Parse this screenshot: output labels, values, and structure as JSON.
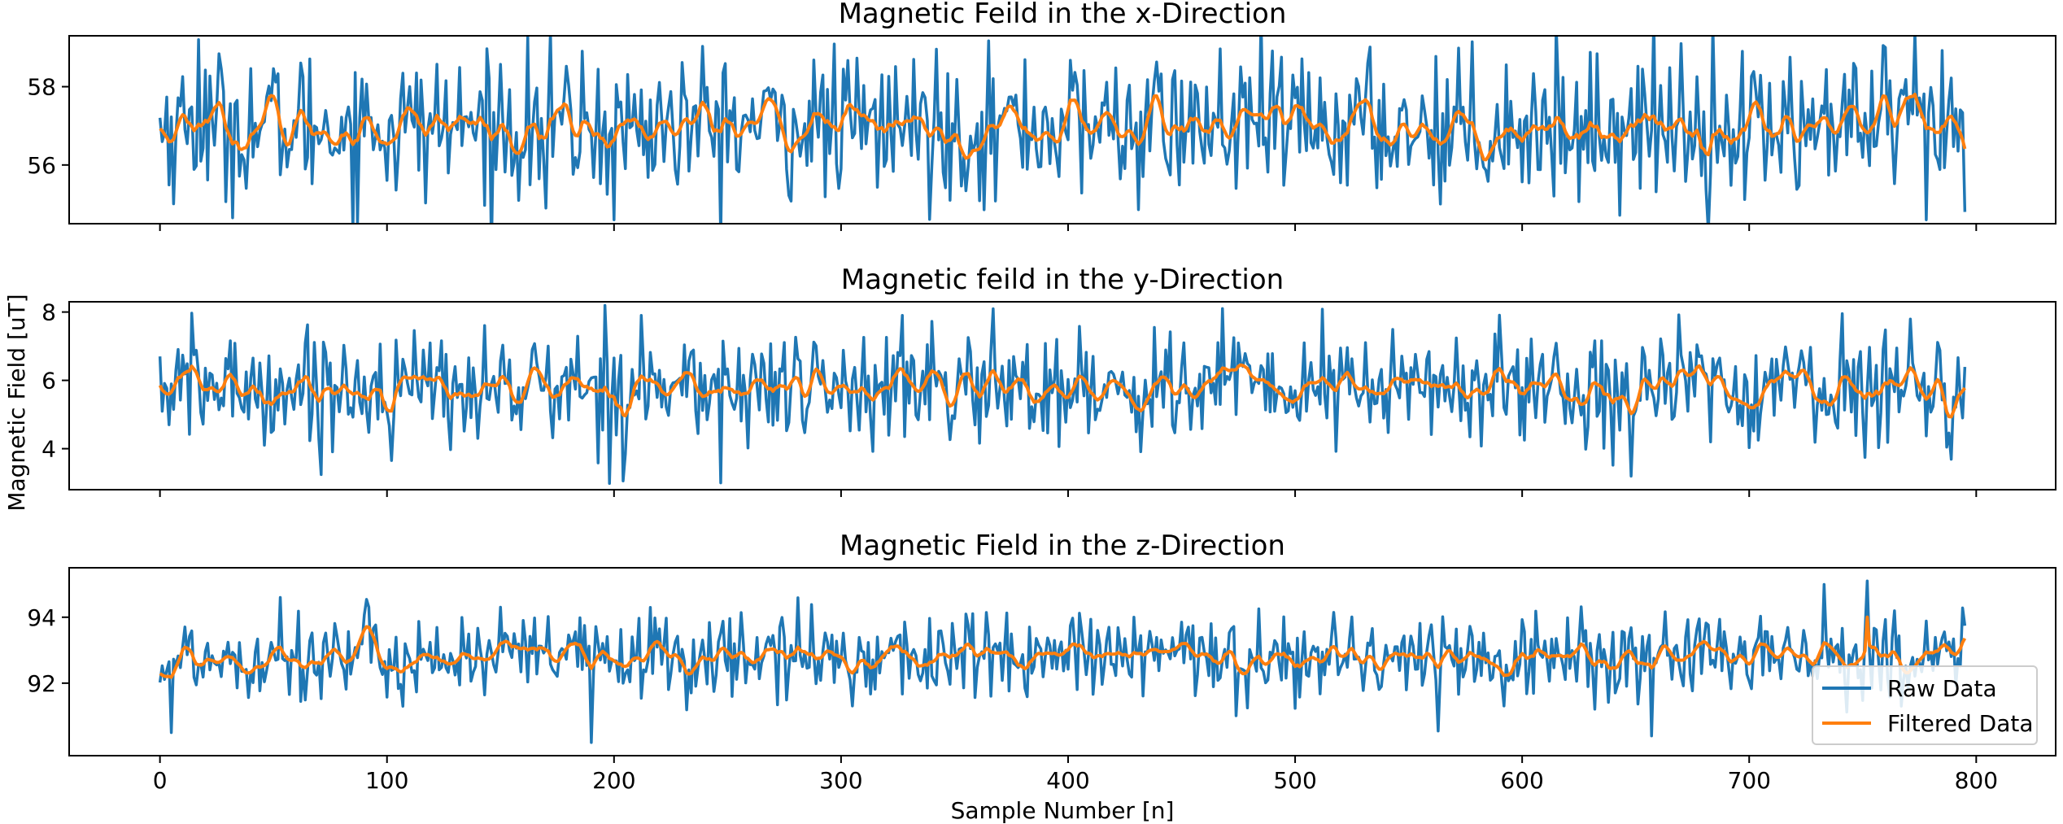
{
  "figure": {
    "ylabel": "Magnetic Field [uT]",
    "xlabel": "Sample Number [n]",
    "legend": {
      "placement": "lower-right",
      "entries": [
        {
          "label": "Raw Data",
          "color": "#1f77b4"
        },
        {
          "label": "Filtered Data",
          "color": "#ff7f0e"
        }
      ]
    }
  },
  "chart_data": [
    {
      "type": "line",
      "title": "Magnetic Feild in the x-Direction",
      "xlim": [
        -40,
        835
      ],
      "ylim": [
        54.5,
        59.3
      ],
      "yticks": [
        56,
        58
      ],
      "xticks": [
        0,
        100,
        200,
        300,
        400,
        500,
        600,
        700,
        800
      ],
      "x_range": [
        0,
        795
      ],
      "series": [
        {
          "name": "Raw Data",
          "color": "#1f77b4",
          "base": 57.0,
          "spread": 1.1,
          "extremes": [
            [
              17,
              59.2
            ],
            [
              200,
              54.6
            ],
            [
              670,
              59.1
            ],
            [
              778,
              54.6
            ],
            [
              795,
              54.8
            ],
            [
              170,
              54.9
            ]
          ]
        },
        {
          "name": "Filtered Data",
          "color": "#ff7f0e",
          "base": 57.0,
          "spread": 0.45,
          "extremes": []
        }
      ]
    },
    {
      "type": "line",
      "title": "Magnetic feild in the y-Direction",
      "xlim": [
        -40,
        835
      ],
      "ylim": [
        2.8,
        8.3
      ],
      "yticks": [
        4,
        6,
        8
      ],
      "xticks": [
        0,
        100,
        200,
        300,
        400,
        500,
        600,
        700,
        800
      ],
      "x_range": [
        0,
        795
      ],
      "series": [
        {
          "name": "Raw Data",
          "color": "#1f77b4",
          "base": 5.8,
          "spread": 1.0,
          "extremes": [
            [
              247,
              3.0
            ],
            [
              468,
              8.1
            ],
            [
              212,
              7.9
            ],
            [
              0,
              6.7
            ]
          ]
        },
        {
          "name": "Filtered Data",
          "color": "#ff7f0e",
          "base": 5.8,
          "spread": 0.5,
          "extremes": []
        }
      ]
    },
    {
      "type": "line",
      "title": "Magnetic Field in the z-Direction",
      "xlim": [
        -40,
        835
      ],
      "ylim": [
        89.8,
        95.5
      ],
      "yticks": [
        92,
        94
      ],
      "xticks": [
        0,
        100,
        200,
        300,
        400,
        500,
        600,
        700,
        800
      ],
      "x_range": [
        0,
        795
      ],
      "series": [
        {
          "name": "Raw Data",
          "color": "#1f77b4",
          "base": 92.8,
          "spread": 0.8,
          "extremes": [
            [
              190,
              90.2
            ],
            [
              752,
              95.1
            ],
            [
              53,
              94.6
            ],
            [
              657,
              90.4
            ],
            [
              5,
              90.5
            ]
          ]
        },
        {
          "name": "Filtered Data",
          "color": "#ff7f0e",
          "base": 92.8,
          "spread": 0.4,
          "extremes": [
            [
              752,
              94.0
            ]
          ]
        }
      ]
    }
  ]
}
